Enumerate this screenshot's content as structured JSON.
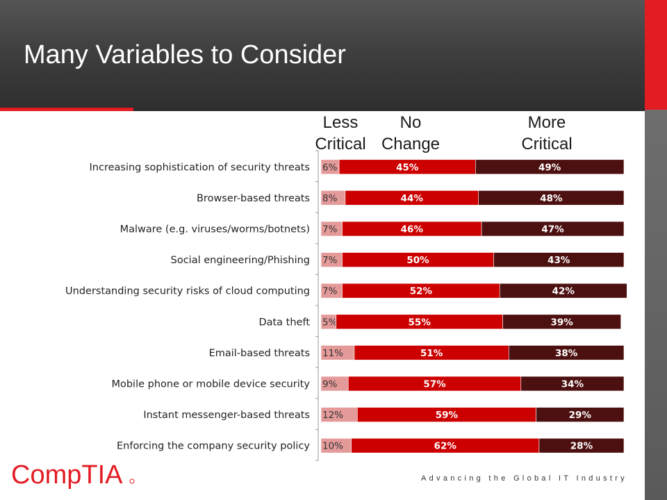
{
  "slide": {
    "title": "Many Variables to Consider",
    "tagline": "Advancing the Global IT Industry",
    "brand_color": "#e31c24"
  },
  "logo": {
    "text": "CompTIA"
  },
  "column_headers": {
    "less": "Less\nCritical",
    "no_change": "No\nChange",
    "more": "More\nCritical"
  },
  "chart_data": {
    "type": "bar",
    "stacked": true,
    "orientation": "horizontal",
    "categories": [
      "Increasing sophistication of security threats",
      "Browser-based threats",
      "Malware (e.g. viruses/worms/botnets)",
      "Social engineering/Phishing",
      "Understanding security risks of cloud computing",
      "Data theft",
      "Email-based threats",
      "Mobile phone or mobile device security",
      "Instant messenger-based threats",
      "Enforcing the company security policy"
    ],
    "series": [
      {
        "name": "Less Critical",
        "color": "#e59a9a",
        "label_color": "#333333",
        "values": [
          6,
          8,
          7,
          7,
          7,
          5,
          11,
          9,
          12,
          10
        ]
      },
      {
        "name": "No Change",
        "color": "#cc0000",
        "label_color": "#ffffff",
        "values": [
          45,
          44,
          46,
          50,
          52,
          55,
          51,
          57,
          59,
          62
        ]
      },
      {
        "name": "More Critical",
        "color": "#4d1010",
        "label_color": "#ffffff",
        "values": [
          49,
          48,
          47,
          43,
          42,
          39,
          38,
          34,
          29,
          28
        ]
      }
    ],
    "value_suffix": "%",
    "xlim": [
      0,
      100
    ],
    "grid": false
  }
}
